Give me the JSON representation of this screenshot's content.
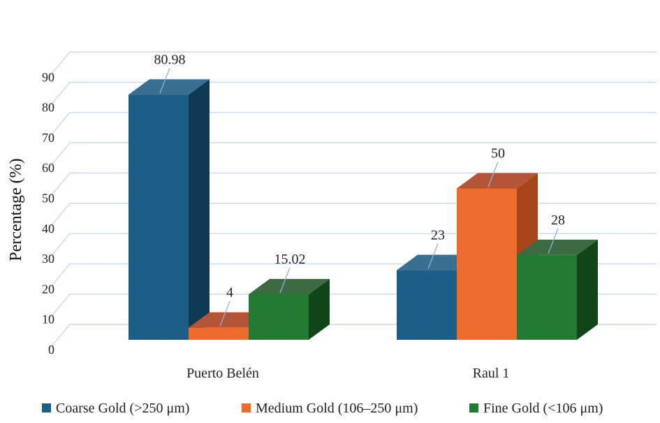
{
  "chart_data": {
    "type": "bar",
    "style": "3d-clustered",
    "title": "",
    "xlabel": "",
    "ylabel": "Percentage (%)",
    "ylim": [
      0,
      90
    ],
    "ytick_values": [
      0,
      10,
      20,
      30,
      40,
      50,
      60,
      70,
      80,
      90
    ],
    "ytick_labels": [
      "0",
      "10",
      "20",
      "30",
      "40",
      "50",
      "60",
      "70",
      "80",
      "90"
    ],
    "grid": true,
    "legend_position": "bottom",
    "categories": [
      "Puerto Belén",
      "Raul 1"
    ],
    "series": [
      {
        "name": "Coarse Gold (>250 μm)",
        "values": [
          80.98,
          23
        ],
        "labels": [
          "80.98",
          "23"
        ],
        "color": "#1b5f86",
        "side_color": "#0f3a55",
        "top_color": "#3a6f92"
      },
      {
        "name": "Medium Gold (106–250 μm)",
        "values": [
          4,
          50
        ],
        "labels": [
          "4",
          "50"
        ],
        "color": "#ee6c2b",
        "side_color": "#a8461a",
        "top_color": "#b4553a"
      },
      {
        "name": "Fine Gold (<106 μm)",
        "values": [
          15.02,
          28
        ],
        "labels": [
          "15.02",
          "28"
        ],
        "color": "#237a32",
        "side_color": "#11461b",
        "top_color": "#3b6a43"
      }
    ]
  }
}
